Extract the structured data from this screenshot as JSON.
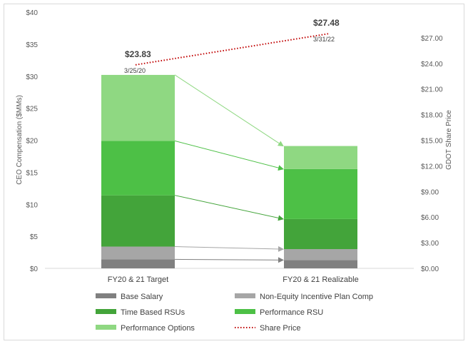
{
  "chart_data": {
    "type": "bar",
    "stacked": true,
    "categories": [
      "FY20 & 21 Target",
      "FY20 & 21 Realizable"
    ],
    "series": [
      {
        "name": "Base Salary",
        "color": "#808080",
        "values": [
          1.4,
          1.3
        ]
      },
      {
        "name": "Non-Equity Incentive Plan Comp",
        "color": "#a6a6a6",
        "values": [
          2.0,
          1.7
        ]
      },
      {
        "name": "Time Based RSUs",
        "color": "#43a43a",
        "values": [
          8.0,
          4.7
        ]
      },
      {
        "name": "Performance RSU",
        "color": "#4dc046",
        "values": [
          8.5,
          7.8
        ]
      },
      {
        "name": "Performance Options",
        "color": "#8fd882",
        "values": [
          10.3,
          3.6
        ]
      }
    ],
    "line_series": {
      "name": "Share Price",
      "color": "#c00000",
      "style": "dotted",
      "axis": "right",
      "points": [
        {
          "value": 23.83,
          "label": "$23.83",
          "date": "3/25/20"
        },
        {
          "value": 27.48,
          "label": "$27.48",
          "date": "3/31/22"
        }
      ]
    },
    "ylabel": "CEO Compensation ($MMs)",
    "y2label": "GDOT Share Price",
    "ylim": [
      0,
      40
    ],
    "y2lim": [
      0,
      30
    ],
    "yticks": [
      "$0",
      "$5",
      "$10",
      "$15",
      "$20",
      "$25",
      "$30",
      "$35",
      "$40"
    ],
    "y2ticks": [
      "$0.00",
      "$3.00",
      "$6.00",
      "$9.00",
      "$12.00",
      "$15.00",
      "$18.00",
      "$21.00",
      "$24.00",
      "$27.00"
    ],
    "connector_arrows": true,
    "gridlines": false,
    "legend_position": "bottom"
  }
}
